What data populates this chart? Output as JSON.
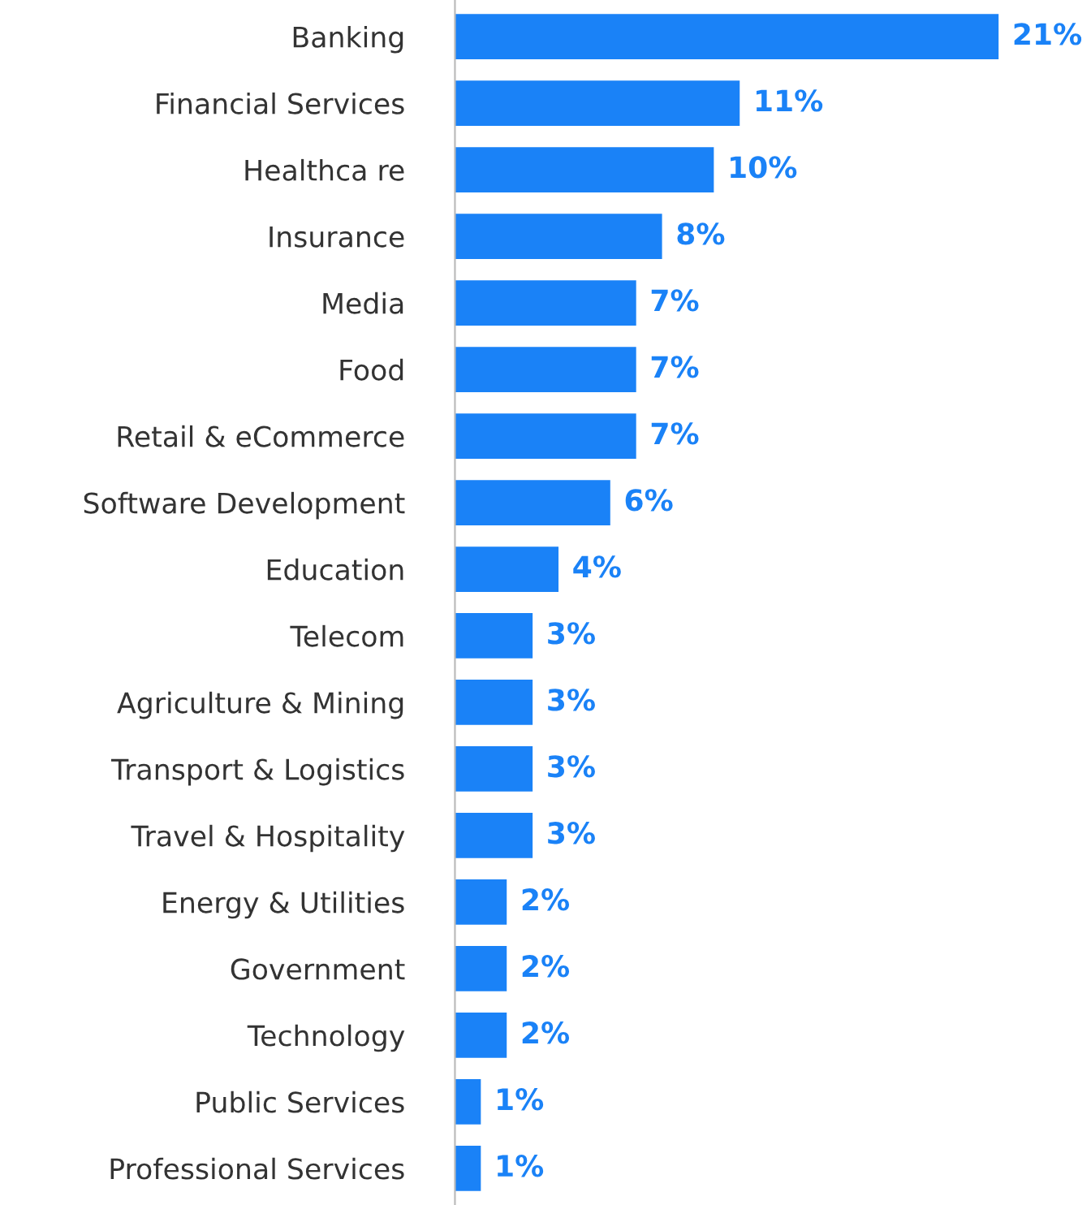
{
  "chart_data": {
    "type": "bar",
    "orientation": "horizontal",
    "categories": [
      "Banking",
      "Financial Services",
      "Healthca re",
      "Insurance",
      "Media",
      "Food",
      "Retail & eCommerce",
      "Software Development",
      "Education",
      "Telecom",
      "Agriculture & Mining",
      "Transport & Logistics",
      "Travel & Hospitality",
      "Energy & Utilities",
      "Government",
      "Technology",
      "Public Services",
      "Professional Services"
    ],
    "values": [
      21,
      11,
      10,
      8,
      7,
      7,
      7,
      6,
      4,
      3,
      3,
      3,
      3,
      2,
      2,
      2,
      1,
      1
    ],
    "value_labels": [
      "21%",
      "11%",
      "10%",
      "8%",
      "7%",
      "7%",
      "7%",
      "6%",
      "4%",
      "3%",
      "3%",
      "3%",
      "3%",
      "2%",
      "2%",
      "2%",
      "1%",
      "1%"
    ],
    "color": "#1a82f7",
    "grid": false,
    "legend": false,
    "tick_labels": "y"
  }
}
